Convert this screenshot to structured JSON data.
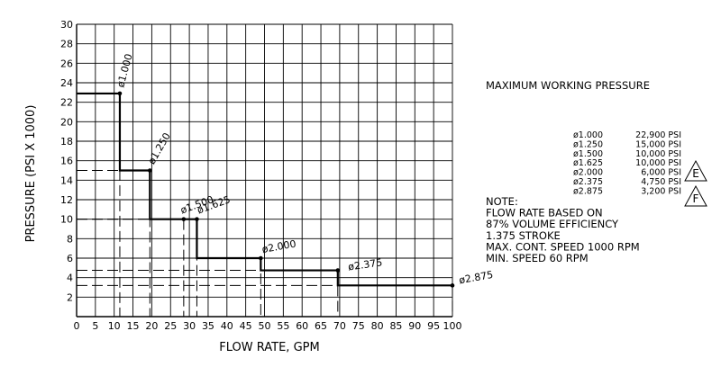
{
  "chart_data": {
    "type": "line",
    "subtype": "step",
    "xlabel": "FLOW RATE, GPM",
    "ylabel": "PRESSURE (PSI X 1000)",
    "xlim": [
      0,
      100
    ],
    "ylim": [
      0,
      30
    ],
    "x_ticks": [
      0,
      5,
      10,
      15,
      20,
      25,
      30,
      35,
      40,
      45,
      50,
      55,
      60,
      65,
      70,
      75,
      80,
      85,
      90,
      95,
      100
    ],
    "y_ticks": [
      2,
      4,
      6,
      8,
      10,
      12,
      14,
      16,
      18,
      20,
      22,
      24,
      26,
      28,
      30
    ],
    "grid": true,
    "points": [
      {
        "label": "ø1.000",
        "x": 11.5,
        "y": 22.9
      },
      {
        "label": "ø1.250",
        "x": 19.5,
        "y": 15.0
      },
      {
        "label": "ø1.500",
        "x": 28.5,
        "y": 10.0
      },
      {
        "label": "ø1.625",
        "x": 32.0,
        "y": 10.0
      },
      {
        "label": "ø2.000",
        "x": 49.0,
        "y": 6.0
      },
      {
        "label": "ø2.375",
        "x": 69.5,
        "y": 4.75
      },
      {
        "label": "ø2.875",
        "x": 100.0,
        "y": 3.2
      }
    ],
    "title_right": "MAXIMUM WORKING PRESSURE",
    "pressure_table": [
      {
        "dia": "ø1.000",
        "psi": "22,900 PSI"
      },
      {
        "dia": "ø1.250",
        "psi": "15,000 PSI"
      },
      {
        "dia": "ø1.500",
        "psi": "10,000 PSI"
      },
      {
        "dia": "ø1.625",
        "psi": "10,000 PSI"
      },
      {
        "dia": "ø2.000",
        "psi": "6,000 PSI"
      },
      {
        "dia": "ø2.375",
        "psi": "4,750 PSI"
      },
      {
        "dia": "ø2.875",
        "psi": "3,200 PSI"
      }
    ],
    "revision_marks": [
      "E",
      "F"
    ],
    "notes": [
      "NOTE:",
      "FLOW RATE BASED ON",
      "87% VOLUME EFFICIENCY",
      "1.375 STROKE",
      "MAX. CONT. SPEED 1000 RPM",
      "MIN. SPEED 60 RPM"
    ]
  }
}
